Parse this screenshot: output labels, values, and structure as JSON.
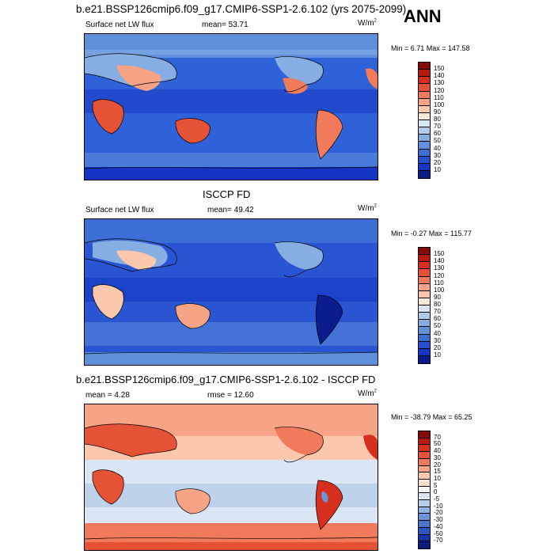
{
  "header": {
    "title": "b.e21.BSSP126cmip6.f09_g17.CMIP6-SSP1-2.6.102 (yrs 2075-2099)",
    "season": "ANN"
  },
  "panels": [
    {
      "id": "model",
      "title": "",
      "variable": "Surface net LW flux",
      "stat_text": "mean=  53.71",
      "units": "W/m",
      "units_sup": "2",
      "minmax": "Min =  6.71 Max = 147.58",
      "levels": [
        "150",
        "140",
        "130",
        "120",
        "110",
        "100",
        "90",
        "80",
        "70",
        "60",
        "50",
        "40",
        "30",
        "20",
        "10"
      ],
      "colors": [
        "#8b0a0a",
        "#b81a10",
        "#d62f1d",
        "#e65236",
        "#f07a5a",
        "#f7a386",
        "#fbc7ad",
        "#fde6d6",
        "#d8e6f5",
        "#b0cbeb",
        "#86aee3",
        "#5f90dc",
        "#3c6fd6",
        "#2550d0",
        "#1536c4",
        "#0a1d8c"
      ],
      "background": "#2f62d8"
    },
    {
      "id": "obs",
      "title": "ISCCP FD",
      "variable": "Surface net LW flux",
      "stat_text": "mean=  49.42",
      "units": "W/m",
      "units_sup": "2",
      "minmax": "Min =  -0.27 Max = 115.77",
      "levels": [
        "150",
        "140",
        "130",
        "120",
        "110",
        "100",
        "90",
        "80",
        "70",
        "60",
        "50",
        "40",
        "30",
        "20",
        "10"
      ],
      "colors": [
        "#8b0a0a",
        "#b81a10",
        "#d62f1d",
        "#e65236",
        "#f07a5a",
        "#f7a386",
        "#fbc7ad",
        "#fde6d6",
        "#d8e6f5",
        "#b0cbeb",
        "#86aee3",
        "#5f90dc",
        "#3c6fd6",
        "#2550d0",
        "#1536c4",
        "#0a1d8c"
      ],
      "background": "#2a55d2"
    },
    {
      "id": "diff",
      "title": "b.e21.BSSP126cmip6.f09_g17.CMIP6-SSP1-2.6.102 - ISCCP FD",
      "variable": "mean =   4.28",
      "stat_text": "rmse =  12.60",
      "units": "W/m",
      "units_sup": "2",
      "minmax": "Min = -38.79 Max =  65.25",
      "levels": [
        "70",
        "50",
        "40",
        "30",
        "20",
        "15",
        "10",
        "5",
        "0",
        "-5",
        "-10",
        "-20",
        "-30",
        "-40",
        "-50",
        "-70"
      ],
      "colors": [
        "#8b0a0a",
        "#b81a10",
        "#d62f1d",
        "#e65236",
        "#f07a5a",
        "#f7a386",
        "#fbc7ad",
        "#fde0d0",
        "#ffffff",
        "#dbe6f4",
        "#b8cdea",
        "#92b3e2",
        "#6b95da",
        "#4a76d2",
        "#2c56c8",
        "#1535a8",
        "#0a1d80"
      ],
      "background": "#f4c0a8"
    }
  ]
}
